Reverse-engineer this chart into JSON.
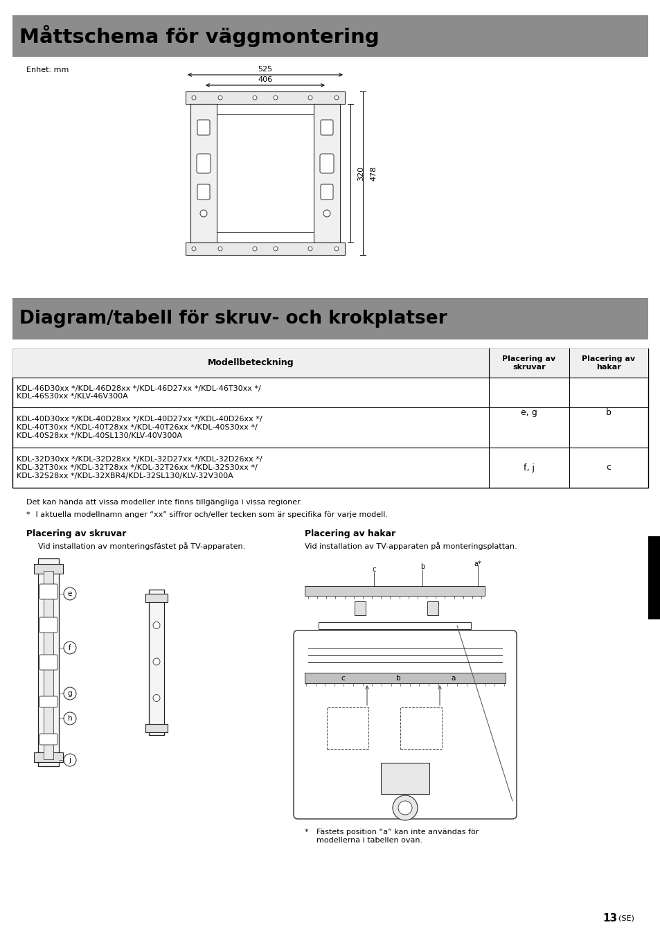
{
  "page_bg": "#ffffff",
  "header1_bg": "#8c8c8c",
  "header1_text": "Måttschema för väggmontering",
  "header2_bg": "#8c8c8c",
  "header2_text": "Diagram/tabell för skruv- och krokplatser",
  "unit_label": "Enhet: mm",
  "dim_525": "525",
  "dim_406": "406",
  "dim_320": "320",
  "dim_478": "478",
  "table_header_col1": "Modellbeteckning",
  "table_header_col2": "Placering av\nskruvar",
  "table_header_col3": "Placering av\nhakar",
  "table_rows": [
    {
      "model": "KDL-46D30xx */KDL-46D28xx */KDL-46D27xx */KDL-46T30xx */\nKDL-46S30xx */KLV-46V300A",
      "screws": "",
      "hooks": ""
    },
    {
      "model": "KDL-40D30xx */KDL-40D28xx */KDL-40D27xx */KDL-40D26xx */\nKDL-40T30xx */KDL-40T28xx */KDL-40T26xx */KDL-40S30xx */\nKDL-40S28xx */KDL-40SL130/KLV-40V300A",
      "screws": "e, g",
      "hooks": "b"
    },
    {
      "model": "KDL-32D30xx */KDL-32D28xx */KDL-32D27xx */KDL-32D26xx */\nKDL-32T30xx */KDL-32T28xx */KDL-32T26xx */KDL-32S30xx */\nKDL-32S28xx */KDL-32XBR4/KDL-32SL130/KLV-32V300A",
      "screws": "f, j",
      "hooks": "c"
    }
  ],
  "note1": "Det kan hända att vissa modeller inte finns tillgängliga i vissa regioner.",
  "note2_star": "*",
  "note2_body": " I aktuella modellnamn anger “xx” siffror och/eller tecken som är specifika för varje modell.",
  "section_left_title": "Placering av skruvar",
  "section_right_title": "Placering av hakar",
  "section_left_sub": "Vid installation av monteringsfästet på TV-apparaten.",
  "section_right_sub": "Vid installation av TV-apparaten på monteringsplattan.",
  "footnote_star": "*",
  "footnote_body": "  Fästets position “a” kan inte användas för\n  modellerna i tabellen ovan.",
  "page_number": "13",
  "page_se": "(SE)"
}
